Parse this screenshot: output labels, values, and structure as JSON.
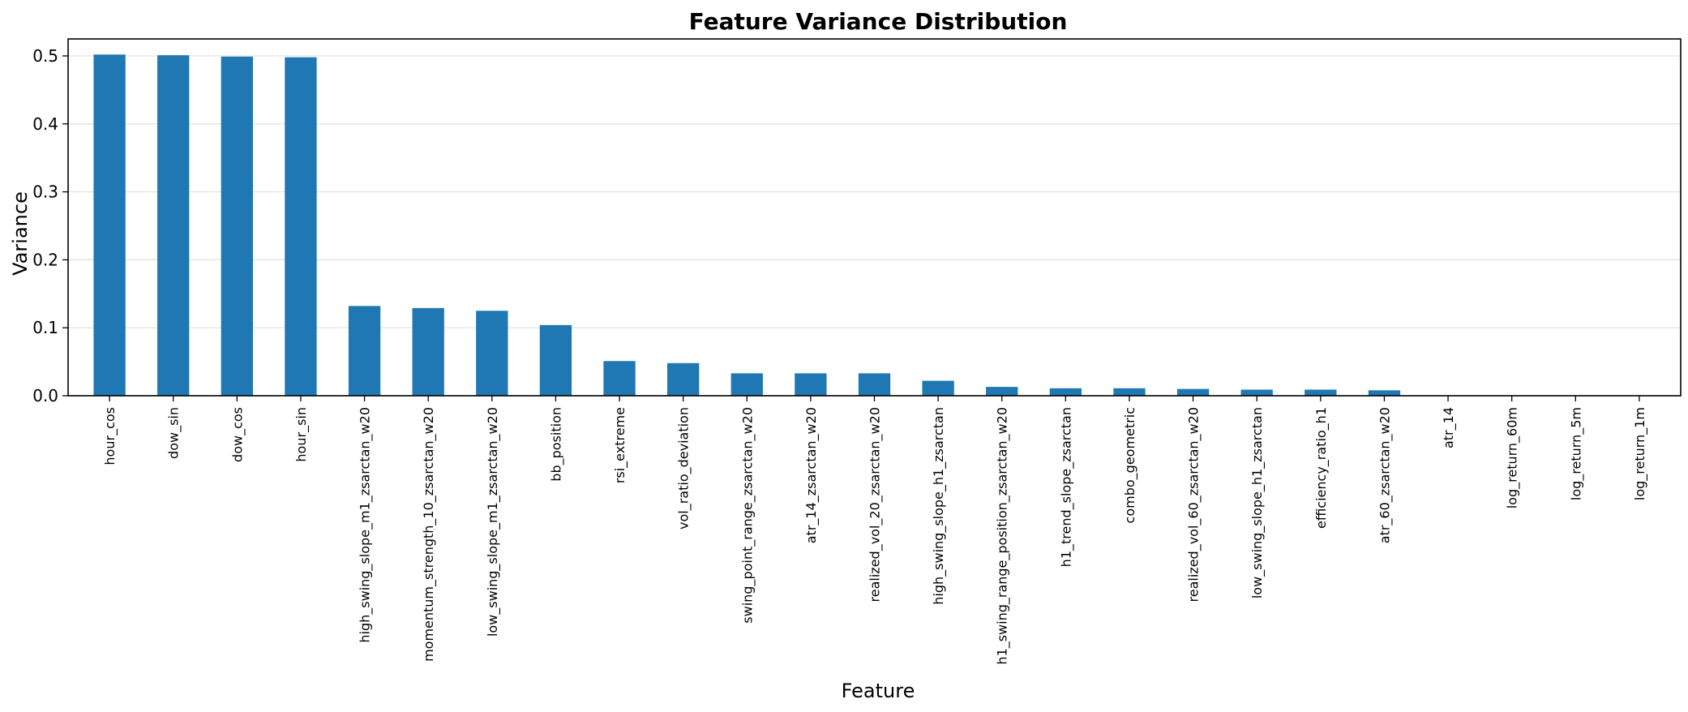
{
  "chart_data": {
    "type": "bar",
    "title": "Feature Variance Distribution",
    "xlabel": "Feature",
    "ylabel": "Variance",
    "ylim": [
      0,
      0.525
    ],
    "yticks": [
      0.0,
      0.1,
      0.2,
      0.3,
      0.4,
      0.5
    ],
    "grid": "y",
    "bar_color": "#1f77b4",
    "categories": [
      "hour_cos",
      "dow_sin",
      "dow_cos",
      "hour_sin",
      "high_swing_slope_m1_zsarctan_w20",
      "momentum_strength_10_zsarctan_w20",
      "low_swing_slope_m1_zsarctan_w20",
      "bb_position",
      "rsi_extreme",
      "vol_ratio_deviation",
      "swing_point_range_zsarctan_w20",
      "atr_14_zsarctan_w20",
      "realized_vol_20_zsarctan_w20",
      "high_swing_slope_h1_zsarctan",
      "h1_swing_range_position_zsarctan_w20",
      "h1_trend_slope_zsarctan",
      "combo_geometric",
      "realized_vol_60_zsarctan_w20",
      "low_swing_slope_h1_zsarctan",
      "efficiency_ratio_h1",
      "atr_60_zsarctan_w20",
      "atr_14",
      "log_return_60m",
      "log_return_5m",
      "log_return_1m"
    ],
    "values": [
      0.502,
      0.501,
      0.499,
      0.498,
      0.132,
      0.129,
      0.125,
      0.104,
      0.051,
      0.048,
      0.033,
      0.033,
      0.033,
      0.022,
      0.013,
      0.011,
      0.011,
      0.01,
      0.009,
      0.009,
      0.008,
      0.0003,
      0.0001,
      0.0001,
      0.0001
    ]
  }
}
